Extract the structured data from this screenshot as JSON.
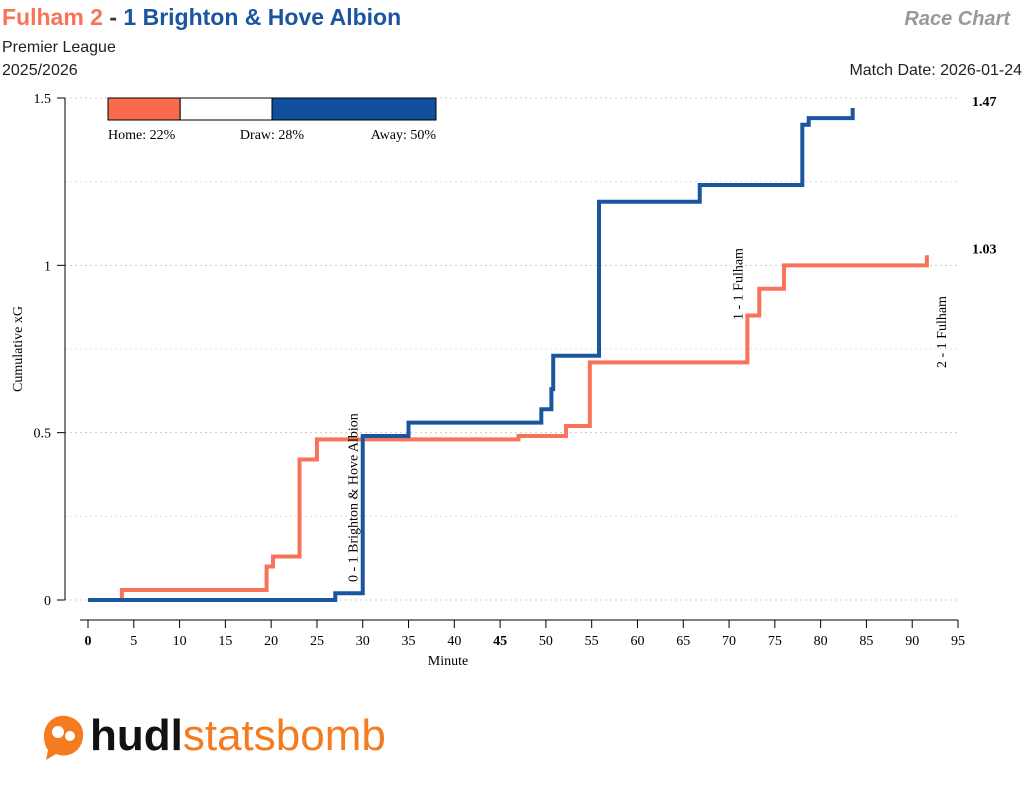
{
  "header": {
    "home": "Fulham 2",
    "separator": "-",
    "away": "1 Brighton & Hove Albion",
    "chart_name": "Race Chart",
    "competition": "Premier League",
    "season": "2025/2026",
    "match_date": "Match Date: 2026-01-24"
  },
  "chart_data": {
    "type": "step",
    "xlabel": "Minute",
    "ylabel": "Cumulative xG",
    "xlim": [
      0,
      95
    ],
    "xticks": [
      0,
      5,
      10,
      15,
      20,
      25,
      30,
      35,
      40,
      45,
      50,
      55,
      60,
      65,
      70,
      75,
      80,
      85,
      90,
      95
    ],
    "bold_xticks": [
      0,
      45
    ],
    "ylim": [
      0,
      1.5
    ],
    "yticks": [
      0,
      0.5,
      1,
      1.5
    ],
    "minor_yticks": [
      0.25,
      0.75,
      1.25
    ],
    "grid": true,
    "series": [
      {
        "name": "Fulham",
        "color": "#f7735a",
        "total_label": "1.03",
        "x": [
          0,
          3.7,
          19.5,
          20.2,
          23.1,
          25,
          47,
          52.2,
          54.8,
          72,
          73.3,
          76,
          91.6
        ],
        "values": [
          0,
          0.03,
          0.1,
          0.13,
          0.42,
          0.48,
          0.49,
          0.52,
          0.71,
          0.85,
          0.93,
          1,
          1.03
        ]
      },
      {
        "name": "Brighton & Hove Albion",
        "color": "#1a56a0",
        "total_label": "1.47",
        "x": [
          0,
          27,
          30,
          35,
          49.5,
          50.6,
          50.8,
          55.8,
          66.8,
          78,
          78.7,
          83.5
        ],
        "values": [
          0,
          0.02,
          0.49,
          0.53,
          0.57,
          0.63,
          0.73,
          1.19,
          1.24,
          1.42,
          1.44,
          1.47
        ]
      }
    ],
    "annotations": [
      {
        "x": 30,
        "text": "0 - 1 Brighton & Hove Albion",
        "series": 1
      },
      {
        "x": 72,
        "text": "1 - 1 Fulham",
        "series": 0
      },
      {
        "x": 91.6,
        "text": "2 - 1 Fulham",
        "series": 0
      }
    ],
    "outcome_probabilities": [
      {
        "name": "Home",
        "value": 22,
        "label": "Home: 22%",
        "color": "#fa6a4c"
      },
      {
        "name": "Draw",
        "value": 28,
        "label": "Draw: 28%",
        "color": "#ffffff"
      },
      {
        "name": "Away",
        "value": 50,
        "label": "Away: 50%",
        "color": "#0f4f9e"
      }
    ]
  },
  "logo": {
    "bold": "hudl",
    "light": "statsbomb"
  }
}
